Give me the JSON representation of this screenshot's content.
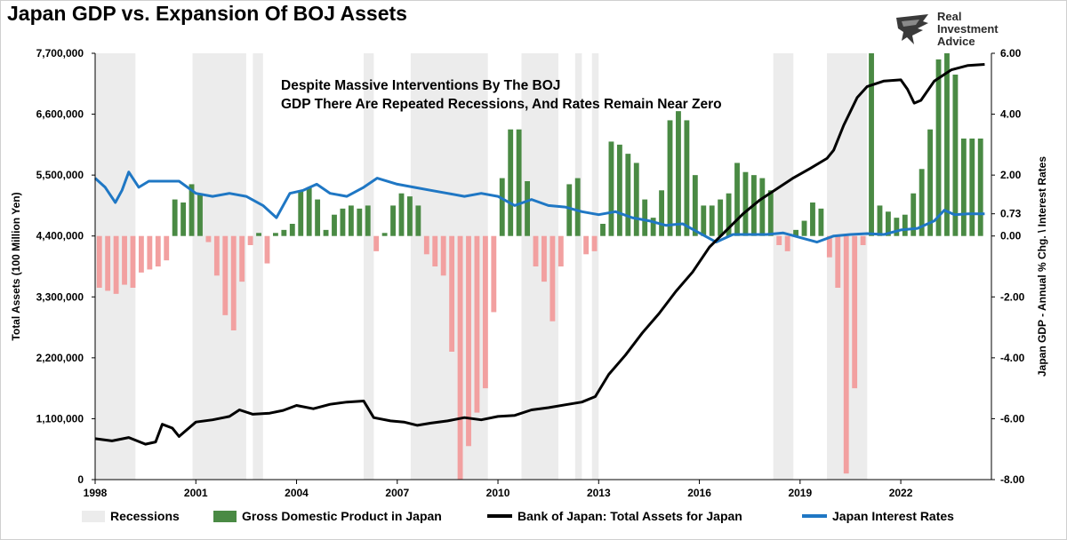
{
  "title": "Japan GDP vs. Expansion Of BOJ Assets",
  "logo": {
    "line1": "Real",
    "line2": "Investment",
    "line3": "Advice"
  },
  "annotation": {
    "line1": "Despite Massive Interventions By The BOJ",
    "line2": "GDP There Are Repeated Recessions, And Rates Remain Near Zero"
  },
  "legend": {
    "recessions": "Recessions",
    "gdp": "Gross Domestic Product in Japan",
    "boj": "Bank of Japan: Total Assets for Japan",
    "rates": "Japan Interest Rates"
  },
  "colors": {
    "recession": "#ececec",
    "gdp_positive": "#4a8a44",
    "gdp_negative": "#f2a0a0",
    "boj_line": "#000000",
    "rates_line": "#1f77c4"
  },
  "chart_data": {
    "type": "bar",
    "xlabel": "",
    "ylabel": "Total Assets (100 Million Yen)",
    "y2label": "Japan GDP - Annual % Chg. \\ Interest Rates",
    "xlim": [
      1998,
      2024.7
    ],
    "ylim": [
      0,
      7700000
    ],
    "y2lim": [
      -8,
      6
    ],
    "x_ticks": [
      "1998",
      "2001",
      "2004",
      "2007",
      "2010",
      "2013",
      "2016",
      "2019",
      "2022"
    ],
    "y_ticks": [
      "0",
      "1,100,000",
      "2,200,000",
      "3,300,000",
      "4,400,000",
      "5,500,000",
      "6,600,000",
      "7,700,000"
    ],
    "y2_ticks": [
      "-8.00",
      "-6.00",
      "-4.00",
      "-2.00",
      "0.00",
      "0.73",
      "2.00",
      "4.00",
      "6.00"
    ],
    "grid": false,
    "legend_position": "bottom",
    "recessions": [
      [
        1998.0,
        1999.2
      ],
      [
        2000.9,
        2002.5
      ],
      [
        2002.7,
        2003.0
      ],
      [
        2006.0,
        2006.3
      ],
      [
        2007.4,
        2009.7
      ],
      [
        2010.7,
        2011.8
      ],
      [
        2012.3,
        2012.5
      ],
      [
        2012.8,
        2013.0
      ],
      [
        2018.2,
        2018.8
      ],
      [
        2019.8,
        2021.0
      ]
    ],
    "series": [
      {
        "name": "Gross Domestic Product in Japan",
        "type": "bar",
        "axis": "right",
        "points": [
          [
            1998.0,
            -1.7
          ],
          [
            1998.25,
            -1.8
          ],
          [
            1998.5,
            -1.9
          ],
          [
            1998.75,
            -1.6
          ],
          [
            1999.0,
            -1.7
          ],
          [
            1999.25,
            -1.2
          ],
          [
            1999.5,
            -1.1
          ],
          [
            1999.75,
            -1.0
          ],
          [
            2000.0,
            -0.8
          ],
          [
            2000.25,
            1.2
          ],
          [
            2000.5,
            1.1
          ],
          [
            2000.75,
            1.7
          ],
          [
            2001.0,
            1.4
          ],
          [
            2001.25,
            -0.2
          ],
          [
            2001.5,
            -1.3
          ],
          [
            2001.75,
            -2.6
          ],
          [
            2002.0,
            -3.1
          ],
          [
            2002.25,
            -1.5
          ],
          [
            2002.5,
            -0.3
          ],
          [
            2002.75,
            0.1
          ],
          [
            2003.0,
            -0.9
          ],
          [
            2003.25,
            0.1
          ],
          [
            2003.5,
            0.2
          ],
          [
            2003.75,
            0.4
          ],
          [
            2004.0,
            1.5
          ],
          [
            2004.25,
            1.6
          ],
          [
            2004.5,
            1.2
          ],
          [
            2004.75,
            0.2
          ],
          [
            2005.0,
            0.7
          ],
          [
            2005.25,
            0.9
          ],
          [
            2005.5,
            1.0
          ],
          [
            2005.75,
            0.9
          ],
          [
            2006.0,
            1.0
          ],
          [
            2006.25,
            -0.5
          ],
          [
            2006.5,
            0.1
          ],
          [
            2006.75,
            1.0
          ],
          [
            2007.0,
            1.4
          ],
          [
            2007.25,
            1.3
          ],
          [
            2007.5,
            1.0
          ],
          [
            2007.75,
            -0.6
          ],
          [
            2008.0,
            -1.0
          ],
          [
            2008.25,
            -1.3
          ],
          [
            2008.5,
            -3.8
          ],
          [
            2008.75,
            -8.0
          ],
          [
            2009.0,
            -6.9
          ],
          [
            2009.25,
            -5.8
          ],
          [
            2009.5,
            -5.0
          ],
          [
            2009.75,
            -2.5
          ],
          [
            2010.0,
            1.9
          ],
          [
            2010.25,
            3.5
          ],
          [
            2010.5,
            3.5
          ],
          [
            2010.75,
            1.8
          ],
          [
            2011.0,
            -1.0
          ],
          [
            2011.25,
            -1.5
          ],
          [
            2011.5,
            -2.8
          ],
          [
            2011.75,
            -1.0
          ],
          [
            2012.0,
            1.7
          ],
          [
            2012.25,
            1.9
          ],
          [
            2012.5,
            -0.6
          ],
          [
            2012.75,
            -0.5
          ],
          [
            2013.0,
            0.4
          ],
          [
            2013.25,
            3.1
          ],
          [
            2013.5,
            3.0
          ],
          [
            2013.75,
            2.7
          ],
          [
            2014.0,
            2.4
          ],
          [
            2014.25,
            1.2
          ],
          [
            2014.5,
            0.6
          ],
          [
            2014.75,
            1.5
          ],
          [
            2015.0,
            3.8
          ],
          [
            2015.25,
            4.1
          ],
          [
            2015.5,
            3.8
          ],
          [
            2015.75,
            2.0
          ],
          [
            2016.0,
            1.0
          ],
          [
            2016.25,
            1.0
          ],
          [
            2016.5,
            1.2
          ],
          [
            2016.75,
            1.4
          ],
          [
            2017.0,
            2.4
          ],
          [
            2017.25,
            2.1
          ],
          [
            2017.5,
            2.0
          ],
          [
            2017.75,
            1.9
          ],
          [
            2018.0,
            1.5
          ],
          [
            2018.25,
            -0.3
          ],
          [
            2018.5,
            -0.5
          ],
          [
            2018.75,
            0.2
          ],
          [
            2019.0,
            0.5
          ],
          [
            2019.25,
            1.1
          ],
          [
            2019.5,
            0.9
          ],
          [
            2019.75,
            -0.7
          ],
          [
            2020.0,
            -1.7
          ],
          [
            2020.25,
            -7.8
          ],
          [
            2020.5,
            -5.0
          ],
          [
            2020.75,
            -0.3
          ],
          [
            2021.0,
            6.0
          ],
          [
            2021.25,
            1.0
          ],
          [
            2021.5,
            0.8
          ],
          [
            2021.75,
            0.6
          ],
          [
            2022.0,
            0.7
          ],
          [
            2022.25,
            1.4
          ],
          [
            2022.5,
            2.2
          ],
          [
            2022.75,
            3.5
          ],
          [
            2023.0,
            5.8
          ],
          [
            2023.25,
            6.0
          ],
          [
            2023.5,
            5.3
          ],
          [
            2023.75,
            3.2
          ],
          [
            2024.0,
            3.2
          ],
          [
            2024.25,
            3.2
          ]
        ]
      },
      {
        "name": "Bank of Japan: Total Assets for Japan",
        "type": "line",
        "axis": "left",
        "points": [
          [
            1998.0,
            740000
          ],
          [
            1998.5,
            700000
          ],
          [
            1999.0,
            760000
          ],
          [
            1999.5,
            640000
          ],
          [
            1999.8,
            680000
          ],
          [
            2000.0,
            1000000
          ],
          [
            2000.3,
            930000
          ],
          [
            2000.5,
            780000
          ],
          [
            2001.0,
            1040000
          ],
          [
            2001.5,
            1080000
          ],
          [
            2002.0,
            1140000
          ],
          [
            2002.3,
            1260000
          ],
          [
            2002.7,
            1180000
          ],
          [
            2003.2,
            1200000
          ],
          [
            2003.6,
            1250000
          ],
          [
            2004.0,
            1340000
          ],
          [
            2004.5,
            1280000
          ],
          [
            2005.0,
            1360000
          ],
          [
            2005.5,
            1400000
          ],
          [
            2006.0,
            1420000
          ],
          [
            2006.3,
            1120000
          ],
          [
            2006.8,
            1060000
          ],
          [
            2007.2,
            1040000
          ],
          [
            2007.6,
            980000
          ],
          [
            2008.0,
            1020000
          ],
          [
            2008.5,
            1060000
          ],
          [
            2009.0,
            1120000
          ],
          [
            2009.5,
            1080000
          ],
          [
            2010.0,
            1140000
          ],
          [
            2010.5,
            1160000
          ],
          [
            2011.0,
            1260000
          ],
          [
            2011.5,
            1300000
          ],
          [
            2012.0,
            1350000
          ],
          [
            2012.5,
            1400000
          ],
          [
            2012.9,
            1500000
          ],
          [
            2013.3,
            1900000
          ],
          [
            2013.8,
            2250000
          ],
          [
            2014.3,
            2650000
          ],
          [
            2014.8,
            3000000
          ],
          [
            2015.3,
            3400000
          ],
          [
            2015.8,
            3750000
          ],
          [
            2016.3,
            4200000
          ],
          [
            2016.8,
            4500000
          ],
          [
            2017.3,
            4800000
          ],
          [
            2017.8,
            5050000
          ],
          [
            2018.3,
            5250000
          ],
          [
            2018.8,
            5450000
          ],
          [
            2019.3,
            5620000
          ],
          [
            2019.8,
            5800000
          ],
          [
            2020.0,
            5950000
          ],
          [
            2020.3,
            6400000
          ],
          [
            2020.7,
            6900000
          ],
          [
            2021.0,
            7100000
          ],
          [
            2021.5,
            7200000
          ],
          [
            2022.0,
            7220000
          ],
          [
            2022.2,
            7050000
          ],
          [
            2022.4,
            6800000
          ],
          [
            2022.6,
            6850000
          ],
          [
            2023.0,
            7200000
          ],
          [
            2023.5,
            7400000
          ],
          [
            2024.0,
            7480000
          ],
          [
            2024.5,
            7500000
          ]
        ]
      },
      {
        "name": "Japan Interest Rates",
        "type": "line",
        "axis": "right",
        "points": [
          [
            1998.0,
            1.9
          ],
          [
            1998.3,
            1.6
          ],
          [
            1998.6,
            1.1
          ],
          [
            1998.8,
            1.5
          ],
          [
            1999.0,
            2.1
          ],
          [
            1999.3,
            1.6
          ],
          [
            1999.6,
            1.8
          ],
          [
            2000.0,
            1.8
          ],
          [
            2000.5,
            1.8
          ],
          [
            2001.0,
            1.4
          ],
          [
            2001.5,
            1.3
          ],
          [
            2002.0,
            1.4
          ],
          [
            2002.5,
            1.3
          ],
          [
            2003.0,
            1.0
          ],
          [
            2003.4,
            0.6
          ],
          [
            2003.8,
            1.4
          ],
          [
            2004.2,
            1.5
          ],
          [
            2004.6,
            1.7
          ],
          [
            2005.0,
            1.4
          ],
          [
            2005.5,
            1.3
          ],
          [
            2006.0,
            1.6
          ],
          [
            2006.4,
            1.9
          ],
          [
            2007.0,
            1.7
          ],
          [
            2007.5,
            1.6
          ],
          [
            2008.0,
            1.5
          ],
          [
            2008.5,
            1.4
          ],
          [
            2009.0,
            1.3
          ],
          [
            2009.5,
            1.4
          ],
          [
            2010.0,
            1.3
          ],
          [
            2010.5,
            1.0
          ],
          [
            2011.0,
            1.2
          ],
          [
            2011.5,
            1.0
          ],
          [
            2012.0,
            0.95
          ],
          [
            2012.5,
            0.8
          ],
          [
            2013.0,
            0.7
          ],
          [
            2013.5,
            0.8
          ],
          [
            2014.0,
            0.6
          ],
          [
            2014.5,
            0.5
          ],
          [
            2015.0,
            0.35
          ],
          [
            2015.5,
            0.4
          ],
          [
            2016.0,
            0.1
          ],
          [
            2016.5,
            -0.2
          ],
          [
            2017.0,
            0.05
          ],
          [
            2017.5,
            0.05
          ],
          [
            2018.0,
            0.05
          ],
          [
            2018.5,
            0.1
          ],
          [
            2019.0,
            -0.05
          ],
          [
            2019.5,
            -0.2
          ],
          [
            2020.0,
            0.0
          ],
          [
            2020.5,
            0.05
          ],
          [
            2021.0,
            0.08
          ],
          [
            2021.5,
            0.05
          ],
          [
            2022.0,
            0.2
          ],
          [
            2022.5,
            0.25
          ],
          [
            2023.0,
            0.5
          ],
          [
            2023.3,
            0.85
          ],
          [
            2023.6,
            0.7
          ],
          [
            2024.0,
            0.73
          ],
          [
            2024.5,
            0.73
          ]
        ]
      }
    ]
  }
}
